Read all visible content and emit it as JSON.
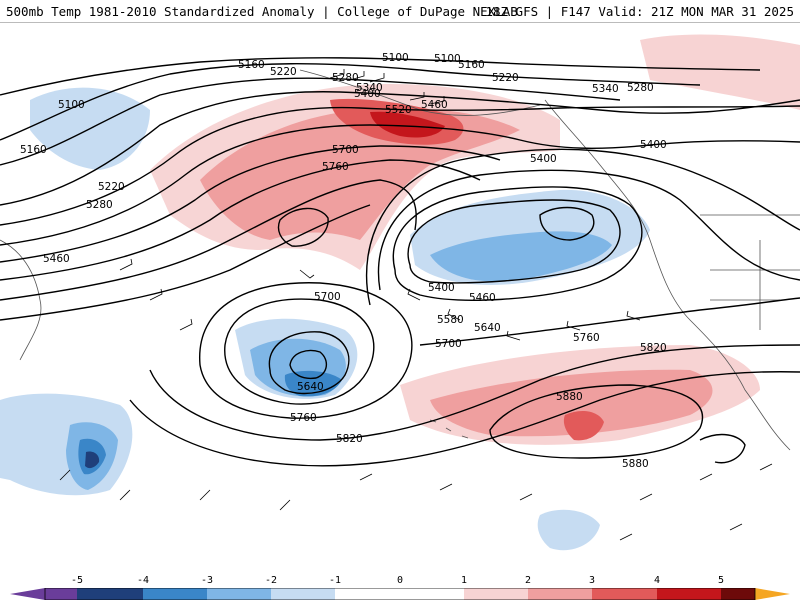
{
  "header": {
    "title_left": "500mb Temp 1981-2010 Standardized Anomaly | College of DuPage NEXLAB",
    "title_right": "18Z GFS | F147 Valid: 21Z MON MAR 31 2025"
  },
  "contour_labels": [
    {
      "id": "l5100a",
      "text": "5100"
    },
    {
      "id": "l5160a",
      "text": "5160"
    },
    {
      "id": "l5220a",
      "text": "5220"
    },
    {
      "id": "l5280a",
      "text": "5280"
    },
    {
      "id": "l5340a",
      "text": "5340"
    },
    {
      "id": "l5400a",
      "text": "5400"
    },
    {
      "id": "l5460a",
      "text": "5460"
    },
    {
      "id": "l5520a",
      "text": "5520"
    },
    {
      "id": "l5700a",
      "text": "5700"
    },
    {
      "id": "l5760a",
      "text": "5760"
    },
    {
      "id": "l5100b",
      "text": "5100"
    },
    {
      "id": "l5160b",
      "text": "5160"
    },
    {
      "id": "l5220b",
      "text": "5220"
    },
    {
      "id": "l5280b",
      "text": "5280"
    },
    {
      "id": "l5340b",
      "text": "5340"
    },
    {
      "id": "l5400b",
      "text": "5400"
    },
    {
      "id": "l5400c",
      "text": "5400"
    },
    {
      "id": "l5100c",
      "text": "5100"
    },
    {
      "id": "l5160c",
      "text": "5160"
    },
    {
      "id": "l5220c",
      "text": "5220"
    },
    {
      "id": "l5280c",
      "text": "5280"
    },
    {
      "id": "l5460b",
      "text": "5460"
    },
    {
      "id": "l5400d",
      "text": "5400"
    },
    {
      "id": "l5460c",
      "text": "5460"
    },
    {
      "id": "l5580a",
      "text": "5580"
    },
    {
      "id": "l5640a",
      "text": "5640"
    },
    {
      "id": "l5700b",
      "text": "5700"
    },
    {
      "id": "l5700c",
      "text": "5700"
    },
    {
      "id": "l5640b",
      "text": "5640"
    },
    {
      "id": "l5760b",
      "text": "5760"
    },
    {
      "id": "l5820a",
      "text": "5820"
    },
    {
      "id": "l5760c",
      "text": "5760"
    },
    {
      "id": "l5820b",
      "text": "5820"
    },
    {
      "id": "l5880a",
      "text": "5880"
    },
    {
      "id": "l5880b",
      "text": "5880"
    }
  ],
  "colorbar": {
    "ticks": [
      "-5",
      "-4",
      "-3",
      "-2",
      "-1",
      "0",
      "1",
      "2",
      "3",
      "4",
      "5"
    ],
    "colors": {
      "neg5": "#6a3d9a",
      "neg4": "#1f3f7a",
      "neg3": "#3a86c8",
      "neg2": "#7fb6e6",
      "neg1": "#c6dcf2",
      "zero": "#ffffff",
      "pos1": "#f7d3d3",
      "pos2": "#ef9f9f",
      "pos3": "#e25a5a",
      "pos4": "#c4161c",
      "pos5": "#6d0a0a",
      "over": "#f5a623"
    }
  }
}
